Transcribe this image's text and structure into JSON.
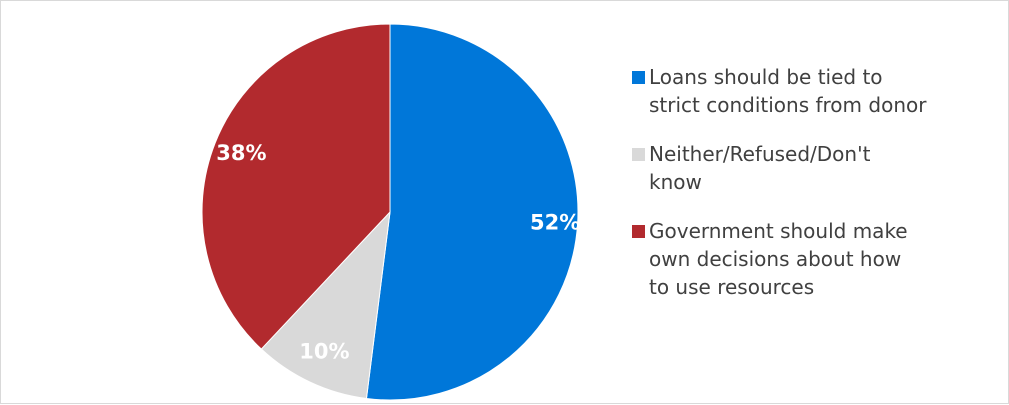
{
  "chart_data": {
    "type": "pie",
    "title": "",
    "categories": [
      "Loans should be tied to strict conditions from donor",
      "Neither/Refused/Don't know",
      "Government should make own decisions about how to use resources"
    ],
    "values": [
      52,
      10,
      38
    ],
    "value_labels": [
      "52%",
      "10%",
      "38%"
    ],
    "colors": [
      "#0077d9",
      "#d9d9d9",
      "#b22a2e"
    ],
    "label_colors": [
      "#ffffff",
      "#ffffff",
      "#ffffff"
    ],
    "start": "12 o'clock",
    "direction": "clockwise",
    "legend_position": "right"
  },
  "legend": {
    "items": [
      {
        "label_lines": [
          "Loans should be tied to",
          "strict conditions from donor"
        ],
        "color": "#0077d9"
      },
      {
        "label_lines": [
          "Neither/Refused/Don't",
          "know"
        ],
        "color": "#d9d9d9"
      },
      {
        "label_lines": [
          "Government should make",
          "own decisions about how",
          "to use resources"
        ],
        "color": "#b22a2e"
      }
    ]
  }
}
